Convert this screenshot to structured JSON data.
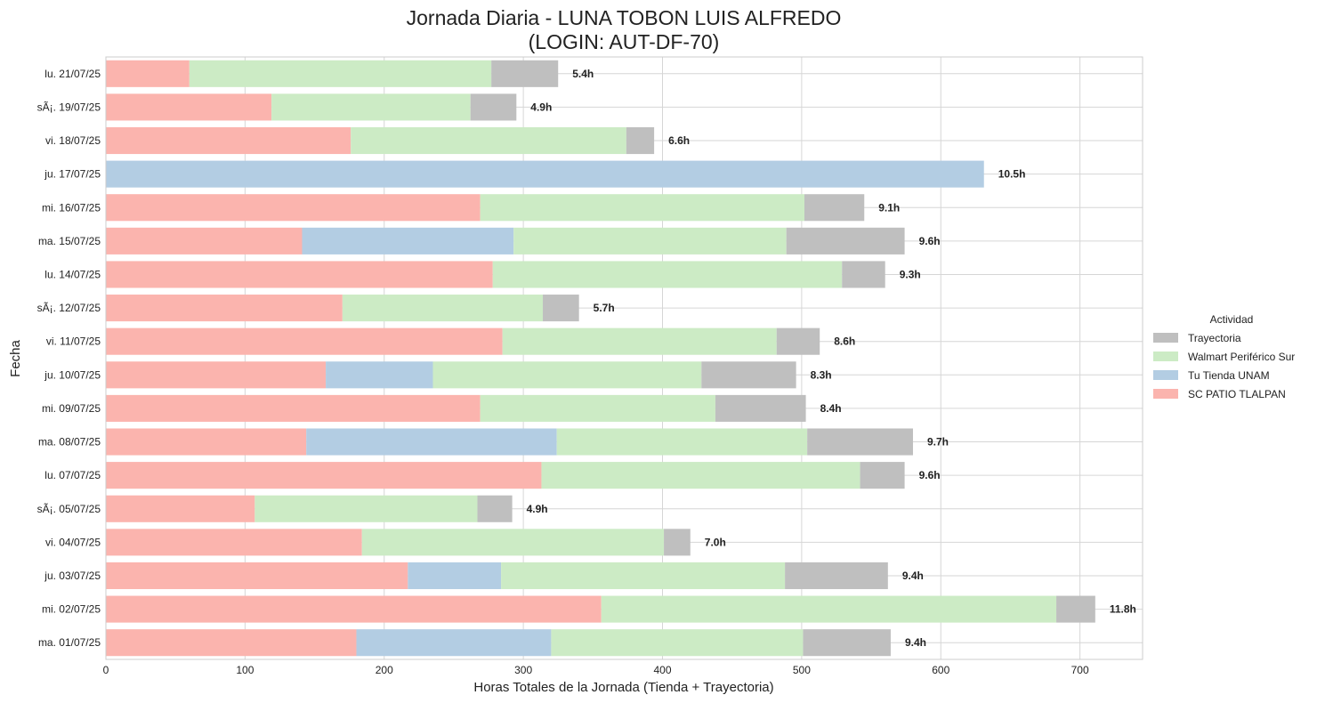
{
  "chart_data": {
    "type": "bar",
    "orientation": "horizontal",
    "stacked": true,
    "title_line1": "Jornada Diaria - LUNA TOBON LUIS ALFREDO",
    "title_line2": "(LOGIN: AUT-DF-70)",
    "xlabel": "Horas Totales de la Jornada (Tienda + Trayectoria)",
    "ylabel": "Fecha",
    "xlim": [
      0,
      745
    ],
    "xticks": [
      0,
      100,
      200,
      300,
      400,
      500,
      600,
      700
    ],
    "grid": true,
    "legend": {
      "title": "Actividad",
      "placement": "center-right outside",
      "entries": [
        "Trayectoria",
        "Walmart Periférico Sur",
        "Tu Tienda UNAM",
        "SC PATIO TLALPAN"
      ]
    },
    "colors": {
      "SC PATIO TLALPAN": "#fbb4ae",
      "Tu Tienda UNAM": "#b3cde3",
      "Walmart Periférico Sur": "#ccebc5",
      "Trayectoria": "#bfbfbf"
    },
    "categories": [
      "lu. 21/07/25",
      "sÃ¡. 19/07/25",
      "vi. 18/07/25",
      "ju. 17/07/25",
      "mi. 16/07/25",
      "ma. 15/07/25",
      "lu. 14/07/25",
      "sÃ¡. 12/07/25",
      "vi. 11/07/25",
      "ju. 10/07/25",
      "mi. 09/07/25",
      "ma. 08/07/25",
      "lu. 07/07/25",
      "sÃ¡. 05/07/25",
      "vi. 04/07/25",
      "ju. 03/07/25",
      "mi. 02/07/25",
      "ma. 01/07/25"
    ],
    "series": [
      {
        "name": "SC PATIO TLALPAN",
        "values": [
          60,
          119,
          176,
          0,
          269,
          141,
          278,
          170,
          285,
          158,
          269,
          144,
          313,
          107,
          184,
          217,
          356,
          180
        ]
      },
      {
        "name": "Tu Tienda UNAM",
        "values": [
          0,
          0,
          0,
          631,
          0,
          152,
          0,
          0,
          0,
          77,
          0,
          180,
          0,
          0,
          0,
          67,
          0,
          140
        ]
      },
      {
        "name": "Walmart Periférico Sur",
        "values": [
          217,
          143,
          198,
          0,
          233,
          196,
          251,
          144,
          197,
          193,
          169,
          180,
          229,
          160,
          217,
          204,
          327,
          181
        ]
      },
      {
        "name": "Trayectoria",
        "values": [
          48,
          33,
          20,
          0,
          43,
          85,
          31,
          26,
          31,
          68,
          65,
          76,
          32,
          25,
          19,
          74,
          28,
          63
        ]
      }
    ],
    "data_labels": [
      "5.4h",
      "4.9h",
      "6.6h",
      "10.5h",
      "9.1h",
      "9.6h",
      "9.3h",
      "5.7h",
      "8.6h",
      "8.3h",
      "8.4h",
      "9.7h",
      "9.6h",
      "4.9h",
      "7.0h",
      "9.4h",
      "11.8h",
      "9.4h"
    ]
  }
}
